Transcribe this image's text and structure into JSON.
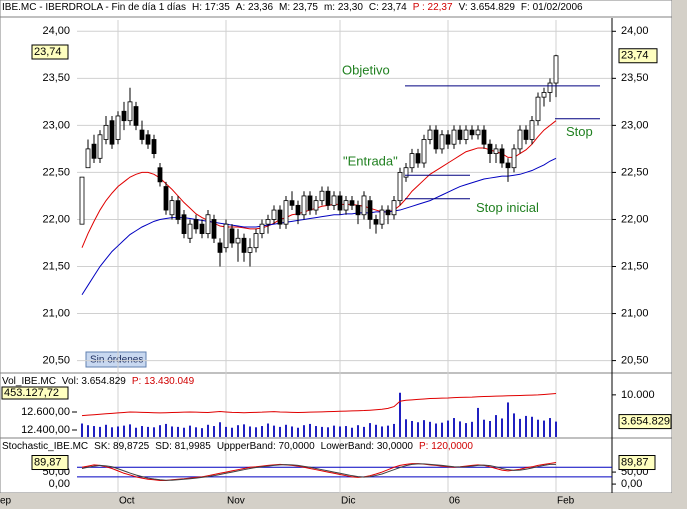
{
  "window": {
    "header": [
      {
        "text": "IBE.MC - IBERDROLA - Fin de día 1 días",
        "color": "#000000"
      },
      {
        "text": "H: 17:35",
        "color": "#000000"
      },
      {
        "text": "A: 23,36",
        "color": "#000000"
      },
      {
        "text": "M: 23,75",
        "color": "#000000"
      },
      {
        "text": "m: 23,30",
        "color": "#000000"
      },
      {
        "text": "C: 23,74",
        "color": "#000000"
      },
      {
        "text": "P : 22,37",
        "color": "#d00000"
      },
      {
        "text": "V: 3.654.829",
        "color": "#000000"
      },
      {
        "text": "F: 01/02/2006",
        "color": "#000000"
      }
    ],
    "x_cut_label": "ep",
    "order_status": "Sin órdenes"
  },
  "chart_data": [
    {
      "type": "candlestick",
      "categories": [
        null,
        null,
        null,
        null,
        null,
        null,
        "Oct",
        null,
        null,
        null,
        null,
        null,
        null,
        null,
        null,
        null,
        null,
        null,
        null,
        null,
        null,
        null,
        null,
        null,
        "Nov",
        null,
        null,
        null,
        null,
        null,
        null,
        null,
        null,
        null,
        null,
        null,
        null,
        null,
        null,
        null,
        null,
        null,
        null,
        "Dic",
        null,
        null,
        null,
        null,
        null,
        null,
        null,
        null,
        null,
        null,
        null,
        null,
        null,
        null,
        null,
        null,
        null,
        "06",
        null,
        null,
        null,
        null,
        null,
        null,
        null,
        null,
        null,
        null,
        null,
        null,
        null,
        null,
        null,
        null,
        null,
        "Feb"
      ],
      "open": [
        21.95,
        22.55,
        22.8,
        22.65,
        22.85,
        23.05,
        22.85,
        23.15,
        23.05,
        23.2,
        22.95,
        22.9,
        22.85,
        22.55,
        22.35,
        22.05,
        22.2,
        22.05,
        21.8,
        22.0,
        21.95,
        21.85,
        22.0,
        21.75,
        21.7,
        21.9,
        21.75,
        21.8,
        21.65,
        21.7,
        21.85,
        21.95,
        22.0,
        22.1,
        21.95,
        22.2,
        22.15,
        22.05,
        22.25,
        22.1,
        22.2,
        22.3,
        22.15,
        22.25,
        22.1,
        22.2,
        22.15,
        22.05,
        22.2,
        22.0,
        21.95,
        22.1,
        22.05,
        22.2,
        22.45,
        22.55,
        22.7,
        22.6,
        22.85,
        22.95,
        22.75,
        22.9,
        22.8,
        22.95,
        22.85,
        22.95,
        22.9,
        22.95,
        22.8,
        22.7,
        22.75,
        22.6,
        22.55,
        22.75,
        22.95,
        22.85,
        23.05,
        23.3,
        23.35,
        23.45
      ],
      "high": [
        22.45,
        22.85,
        22.9,
        22.95,
        23.1,
        23.1,
        23.15,
        23.25,
        23.4,
        23.25,
        23.05,
        22.95,
        22.9,
        22.6,
        22.4,
        22.25,
        22.25,
        22.1,
        22.0,
        22.05,
        22.0,
        22.1,
        22.05,
        21.8,
        22.0,
        21.95,
        21.9,
        21.85,
        21.8,
        21.9,
        22.0,
        22.05,
        22.15,
        22.15,
        22.25,
        22.3,
        22.2,
        22.3,
        22.3,
        22.25,
        22.35,
        22.35,
        22.3,
        22.3,
        22.25,
        22.25,
        22.2,
        22.3,
        22.25,
        22.05,
        22.15,
        22.15,
        22.25,
        22.55,
        22.6,
        22.75,
        22.75,
        22.9,
        23.0,
        23.0,
        22.95,
        22.95,
        23.0,
        23.0,
        23.0,
        23.0,
        23.0,
        23.0,
        22.85,
        22.8,
        22.8,
        22.65,
        22.8,
        23.0,
        23.0,
        23.1,
        23.35,
        23.4,
        23.5,
        23.75
      ],
      "low": [
        21.95,
        22.55,
        22.6,
        22.6,
        22.8,
        22.75,
        22.8,
        22.95,
        23.0,
        22.95,
        22.8,
        22.75,
        22.65,
        22.35,
        22.05,
        22.0,
        21.95,
        21.8,
        21.75,
        21.85,
        21.8,
        21.8,
        21.75,
        21.5,
        21.65,
        21.7,
        21.55,
        21.55,
        21.5,
        21.65,
        21.8,
        21.85,
        21.95,
        21.9,
        21.9,
        22.1,
        21.95,
        22.0,
        22.05,
        22.05,
        22.15,
        22.1,
        22.1,
        22.05,
        22.05,
        22.1,
        21.95,
        22.0,
        21.9,
        21.85,
        21.9,
        21.95,
        22.0,
        22.15,
        22.4,
        22.5,
        22.55,
        22.55,
        22.8,
        22.7,
        22.7,
        22.75,
        22.75,
        22.8,
        22.8,
        22.85,
        22.85,
        22.75,
        22.6,
        22.6,
        22.55,
        22.4,
        22.5,
        22.7,
        22.8,
        22.8,
        23.0,
        23.2,
        23.25,
        23.3
      ],
      "close": [
        22.45,
        22.75,
        22.65,
        22.9,
        23.0,
        22.8,
        23.1,
        23.05,
        23.25,
        23.0,
        22.85,
        22.8,
        22.7,
        22.4,
        22.1,
        22.2,
        22.0,
        21.85,
        21.95,
        21.9,
        21.85,
        22.05,
        21.8,
        21.65,
        21.95,
        21.75,
        21.8,
        21.65,
        21.7,
        21.85,
        21.95,
        22.0,
        22.1,
        21.95,
        22.2,
        22.15,
        22.05,
        22.25,
        22.1,
        22.2,
        22.3,
        22.15,
        22.25,
        22.1,
        22.2,
        22.15,
        22.05,
        22.25,
        22.0,
        21.95,
        22.1,
        22.05,
        22.2,
        22.5,
        22.55,
        22.7,
        22.6,
        22.85,
        22.95,
        22.75,
        22.9,
        22.8,
        22.95,
        22.85,
        22.95,
        22.9,
        22.95,
        22.8,
        22.7,
        22.75,
        22.6,
        22.55,
        22.75,
        22.95,
        22.85,
        23.05,
        23.3,
        23.35,
        23.45,
        23.74
      ],
      "lines": [
        {
          "color": "#e00000",
          "values": [
            21.7,
            21.85,
            21.98,
            22.1,
            22.2,
            22.28,
            22.35,
            22.4,
            22.45,
            22.48,
            22.5,
            22.5,
            22.48,
            22.44,
            22.38,
            22.32,
            22.25,
            22.18,
            22.12,
            22.06,
            22.02,
            21.99,
            21.96,
            21.93,
            21.92,
            21.92,
            21.92,
            21.91,
            21.9,
            21.9,
            21.91,
            21.93,
            21.96,
            22.0,
            22.02,
            22.05,
            22.06,
            22.08,
            22.1,
            22.12,
            22.14,
            22.15,
            22.16,
            22.16,
            22.16,
            22.16,
            22.15,
            22.14,
            22.12,
            22.1,
            22.08,
            22.08,
            22.1,
            22.15,
            22.22,
            22.3,
            22.36,
            22.42,
            22.48,
            22.52,
            22.56,
            22.6,
            22.64,
            22.68,
            22.72,
            22.74,
            22.76,
            22.76,
            22.74,
            22.72,
            22.7,
            22.66,
            22.66,
            22.7,
            22.74,
            22.8,
            22.88,
            22.95,
            23.0,
            23.05
          ]
        },
        {
          "color": "#0000c0",
          "values": [
            21.2,
            21.3,
            21.4,
            21.5,
            21.58,
            21.66,
            21.72,
            21.78,
            21.84,
            21.88,
            21.92,
            21.95,
            21.98,
            22.0,
            22.01,
            22.02,
            22.02,
            22.02,
            22.01,
            22.0,
            21.99,
            21.98,
            21.97,
            21.96,
            21.95,
            21.94,
            21.93,
            21.92,
            21.92,
            21.92,
            21.93,
            21.94,
            21.95,
            21.96,
            21.97,
            21.98,
            21.99,
            22.0,
            22.01,
            22.02,
            22.03,
            22.04,
            22.05,
            22.05,
            22.06,
            22.06,
            22.07,
            22.07,
            22.07,
            22.08,
            22.08,
            22.08,
            22.09,
            22.1,
            22.12,
            22.14,
            22.16,
            22.18,
            22.2,
            22.23,
            22.26,
            22.29,
            22.32,
            22.35,
            22.37,
            22.39,
            22.41,
            22.43,
            22.44,
            22.45,
            22.46,
            22.46,
            22.47,
            22.48,
            22.5,
            22.52,
            22.55,
            22.58,
            22.62,
            22.65
          ]
        }
      ],
      "ylim": [
        20.4,
        24.12
      ],
      "yticks": [
        {
          "value": 24,
          "label": "24,00"
        },
        {
          "value": 23.5,
          "label": "23,50"
        },
        {
          "value": 23,
          "label": "23,00"
        },
        {
          "value": 22.5,
          "label": "22,50"
        },
        {
          "value": 22,
          "label": "22,00"
        },
        {
          "value": 21.5,
          "label": "21,50"
        },
        {
          "value": 21,
          "label": "21,00"
        },
        {
          "value": 20.5,
          "label": "20,50"
        }
      ],
      "grid": true,
      "last_price": {
        "value": 23.74,
        "label": "23,74"
      },
      "annotations": [
        {
          "text": "Objetivo",
          "level": 23.42
        },
        {
          "text": "Stop",
          "level": 23.07
        },
        {
          "text": "\"Entrada\"",
          "level": 22.47
        },
        {
          "text": "Stop inicial",
          "level": 22.22
        }
      ]
    },
    {
      "type": "bar",
      "header": [
        {
          "text": "Vol_IBE.MC",
          "color": "#000000"
        },
        {
          "text": "Vol: 3.654.829",
          "color": "#000000"
        },
        {
          "text": "P: 13.430.049",
          "color": "#d00000"
        }
      ],
      "color": "#2020c0",
      "values": [
        3200,
        2800,
        2600,
        2400,
        2900,
        2300,
        2500,
        2700,
        3000,
        2200,
        2600,
        2400,
        2300,
        2800,
        3100,
        2500,
        2400,
        2200,
        2700,
        2300,
        2100,
        2900,
        2600,
        3500,
        2400,
        2200,
        2800,
        3000,
        2500,
        2300,
        2600,
        3200,
        2700,
        2400,
        2900,
        2500,
        2200,
        2800,
        3100,
        2600,
        2400,
        2300,
        2700,
        2500,
        2600,
        2200,
        2800,
        2400,
        3300,
        2900,
        2500,
        2700,
        3100,
        10500,
        4200,
        3800,
        3500,
        4000,
        3600,
        3200,
        3400,
        3900,
        4500,
        3700,
        3300,
        3600,
        6900,
        4100,
        3800,
        5200,
        4400,
        8200,
        5600,
        4300,
        5000,
        4800,
        4100,
        3900,
        4500,
        3654.829
      ],
      "ylim": [
        0,
        14000
      ],
      "yticks": [
        {
          "value": 10000,
          "label": "10.000"
        }
      ],
      "last_value": {
        "value": 3654.829,
        "label": "3.654.829"
      },
      "line": {
        "color": "#e00000",
        "axis": "y2",
        "values": [
          12560,
          12565,
          12570,
          12575,
          12580,
          12585,
          12590,
          12595,
          12600,
          12598,
          12596,
          12594,
          12592,
          12590,
          12592,
          12594,
          12596,
          12598,
          12600,
          12598,
          12596,
          12594,
          12600,
          12605,
          12600,
          12596,
          12594,
          12592,
          12594,
          12596,
          12598,
          12602,
          12604,
          12600,
          12598,
          12596,
          12594,
          12596,
          12598,
          12600,
          12602,
          12604,
          12606,
          12608,
          12610,
          12612,
          12614,
          12616,
          12620,
          12625,
          12630,
          12640,
          12660,
          12720,
          12730,
          12735,
          12740,
          12745,
          12750,
          12752,
          12754,
          12756,
          12760,
          12762,
          12764,
          12766,
          12770,
          12772,
          12774,
          12776,
          12778,
          12780,
          12782,
          12784,
          12786,
          12788,
          12790,
          12795,
          12800,
          12805
        ]
      },
      "y2lim": [
        12322,
        12978
      ],
      "y2ticks": [
        {
          "value": 12600,
          "label": "12.600,00"
        },
        {
          "value": 12400,
          "label": "12.400,00"
        }
      ],
      "y2_tag": "453.127,72"
    },
    {
      "type": "line",
      "header": [
        {
          "text": "Stochastic_IBE.MC",
          "color": "#000000"
        },
        {
          "text": "SK: 89,8725",
          "color": "#000000"
        },
        {
          "text": "SD: 81,9985",
          "color": "#000000"
        },
        {
          "text": "UppperBand: 70,0000",
          "color": "#000000"
        },
        {
          "text": "LowerBand: 30,0000",
          "color": "#000000"
        },
        {
          "text": "P: 120,0000",
          "color": "#d00000"
        }
      ],
      "series": [
        {
          "color": "#e00000",
          "values": [
            70,
            75,
            80,
            78,
            72,
            65,
            55,
            45,
            38,
            30,
            25,
            20,
            18,
            15,
            15,
            18,
            20,
            22,
            25,
            28,
            30,
            35,
            40,
            45,
            50,
            55,
            60,
            65,
            70,
            72,
            75,
            78,
            80,
            82,
            80,
            78,
            75,
            70,
            65,
            60,
            55,
            50,
            45,
            40,
            35,
            30,
            28,
            30,
            35,
            42,
            50,
            60,
            70,
            78,
            82,
            85,
            85,
            83,
            80,
            78,
            75,
            72,
            70,
            72,
            75,
            78,
            80,
            78,
            72,
            65,
            58,
            55,
            58,
            62,
            68,
            72,
            78,
            82,
            86,
            89.8725
          ]
        },
        {
          "color": "#404040",
          "values": [
            65,
            70,
            75,
            78,
            76,
            72,
            64,
            55,
            46,
            38,
            31,
            25,
            21,
            18,
            16,
            16,
            18,
            20,
            22,
            25,
            28,
            31,
            35,
            40,
            45,
            50,
            55,
            60,
            65,
            69,
            72,
            75,
            78,
            80,
            81,
            80,
            78,
            74,
            70,
            65,
            60,
            55,
            50,
            45,
            40,
            35,
            31,
            29,
            31,
            36,
            42,
            51,
            60,
            69,
            77,
            82,
            84,
            84,
            82,
            80,
            78,
            75,
            72,
            71,
            72,
            75,
            78,
            79,
            77,
            72,
            65,
            60,
            57,
            58,
            62,
            67,
            73,
            78,
            82,
            81.9985
          ]
        }
      ],
      "bands": [
        70,
        30
      ],
      "ylim": [
        -33,
        142
      ],
      "yticks": [
        {
          "value": 50,
          "label": "50,00"
        },
        {
          "value": 0,
          "label": "0,00"
        }
      ],
      "last_value": {
        "value": 89.87,
        "label": "89,87"
      }
    }
  ]
}
